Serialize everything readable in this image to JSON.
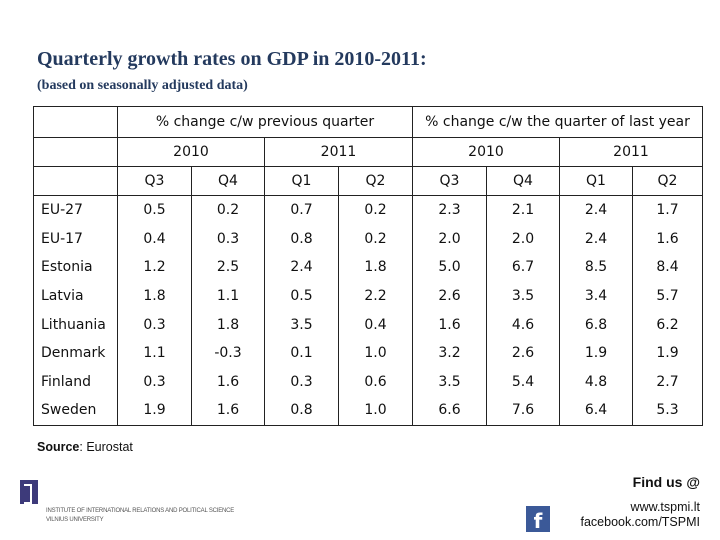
{
  "title": "Quarterly growth rates on GDP in 2010-2011:",
  "subtitle": "(based on seasonally adjusted data)",
  "table": {
    "group_headers": [
      "% change c/w previous quarter",
      "% change c/w the quarter of last year"
    ],
    "year_headers": [
      "2010",
      "2011",
      "2010",
      "2011"
    ],
    "quarter_headers": [
      "Q3",
      "Q4",
      "Q1",
      "Q2",
      "Q3",
      "Q4",
      "Q1",
      "Q2"
    ],
    "rows": [
      {
        "country": "EU-27",
        "values": [
          "0.5",
          "0.2",
          "0.7",
          "0.2",
          "2.3",
          "2.1",
          "2.4",
          "1.7"
        ]
      },
      {
        "country": "EU-17",
        "values": [
          "0.4",
          "0.3",
          "0.8",
          "0.2",
          "2.0",
          "2.0",
          "2.4",
          "1.6"
        ]
      },
      {
        "country": "Estonia",
        "values": [
          "1.2",
          "2.5",
          "2.4",
          "1.8",
          "5.0",
          "6.7",
          "8.5",
          "8.4"
        ]
      },
      {
        "country": "Latvia",
        "values": [
          "1.8",
          "1.1",
          "0.5",
          "2.2",
          "2.6",
          "3.5",
          "3.4",
          "5.7"
        ]
      },
      {
        "country": "Lithuania",
        "values": [
          "0.3",
          "1.8",
          "3.5",
          "0.4",
          "1.6",
          "4.6",
          "6.8",
          "6.2"
        ]
      },
      {
        "country": "Denmark",
        "values": [
          "1.1",
          "-0.3",
          "0.1",
          "1.0",
          "3.2",
          "2.6",
          "1.9",
          "1.9"
        ]
      },
      {
        "country": "Finland",
        "values": [
          "0.3",
          "1.6",
          "0.3",
          "0.6",
          "3.5",
          "5.4",
          "4.8",
          "2.7"
        ]
      },
      {
        "country": "Sweden",
        "values": [
          "1.9",
          "1.6",
          "0.8",
          "1.0",
          "6.6",
          "7.6",
          "6.4",
          "5.3"
        ]
      }
    ]
  },
  "source": {
    "label": "Source",
    "text": ": Eurostat"
  },
  "footer": {
    "institute_line1": "INSTITUTE OF INTERNATIONAL RELATIONS AND POLITICAL SCIENCE",
    "institute_line2": "VILNIUS UNIVERSITY",
    "find_us": "Find us @",
    "website": "www.tspmi.lt",
    "facebook": "facebook.com/TSPMI",
    "facebook_icon": "facebook-icon",
    "logo_icon": "institute-logo-icon"
  },
  "colors": {
    "title": "#243a5e",
    "facebook": "#3b5998",
    "logo": "#3d3a7a"
  }
}
